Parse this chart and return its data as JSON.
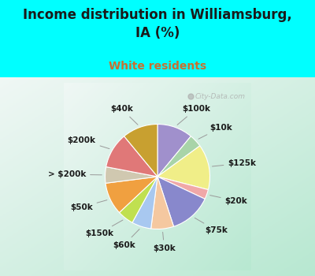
{
  "title": "Income distribution in Williamsburg,\nIA (%)",
  "subtitle": "White residents",
  "background_color": "#00FFFF",
  "labels": [
    "$100k",
    "$10k",
    "$125k",
    "$20k",
    "$75k",
    "$30k",
    "$60k",
    "$150k",
    "$50k",
    "> $200k",
    "$200k",
    "$40k"
  ],
  "sizes": [
    11,
    4,
    14,
    3,
    13,
    7,
    6,
    5,
    10,
    5,
    11,
    11
  ],
  "colors": [
    "#a090cc",
    "#a8d4a8",
    "#f0ee88",
    "#f0a8a8",
    "#8888cc",
    "#f5c8a0",
    "#a8c8f0",
    "#c0e050",
    "#f0a040",
    "#d0c8b0",
    "#e07878",
    "#c8a030"
  ],
  "label_fontsize": 7.5,
  "title_fontsize": 12,
  "subtitle_fontsize": 10,
  "subtitle_color": "#c87030",
  "chart_bg_colors": [
    "#b8e0c8",
    "#e8f5ec"
  ],
  "watermark": "City-Data.com"
}
